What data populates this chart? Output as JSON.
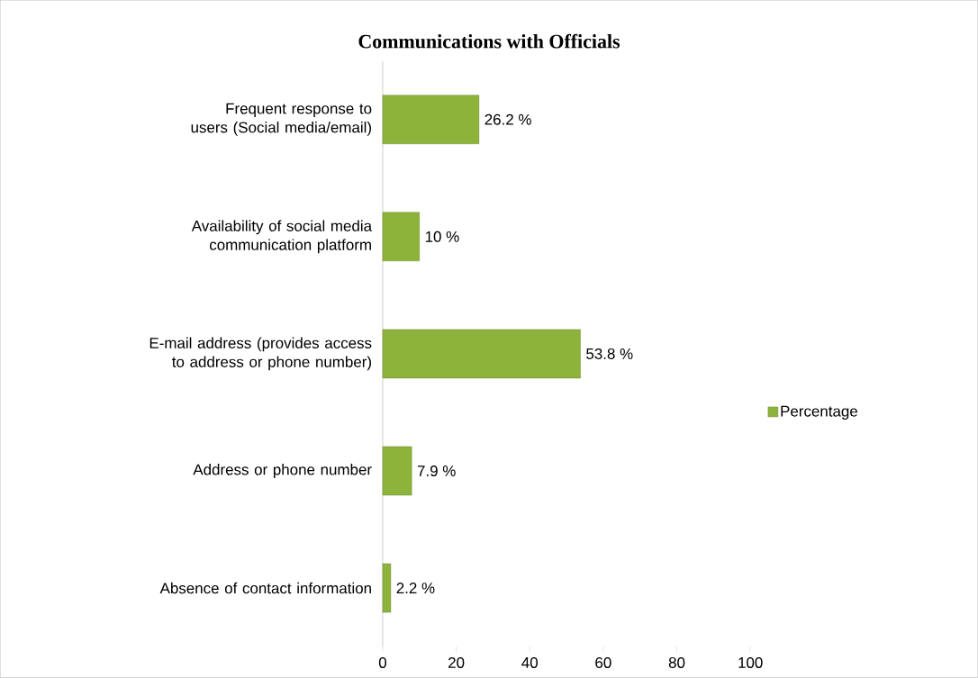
{
  "chart_data": {
    "type": "bar",
    "orientation": "horizontal",
    "title": "Communications with Officials",
    "categories": [
      "Frequent response to users (Social media/email)",
      "Availability of social media communication platform",
      "E-mail address (provides access to address or phone number)",
      "Address or phone number",
      "Absence of contact information"
    ],
    "series": [
      {
        "name": "Percentage",
        "color": "#8db33a",
        "values": [
          26.2,
          10,
          53.8,
          7.9,
          2.2
        ],
        "value_labels": [
          "26.2 %",
          "10 %",
          "53.8 %",
          "7.9 %",
          "2.2 %"
        ]
      }
    ],
    "xlim": [
      0,
      100
    ],
    "xticks": [
      0,
      20,
      40,
      60,
      80,
      100
    ],
    "legend": "right"
  }
}
